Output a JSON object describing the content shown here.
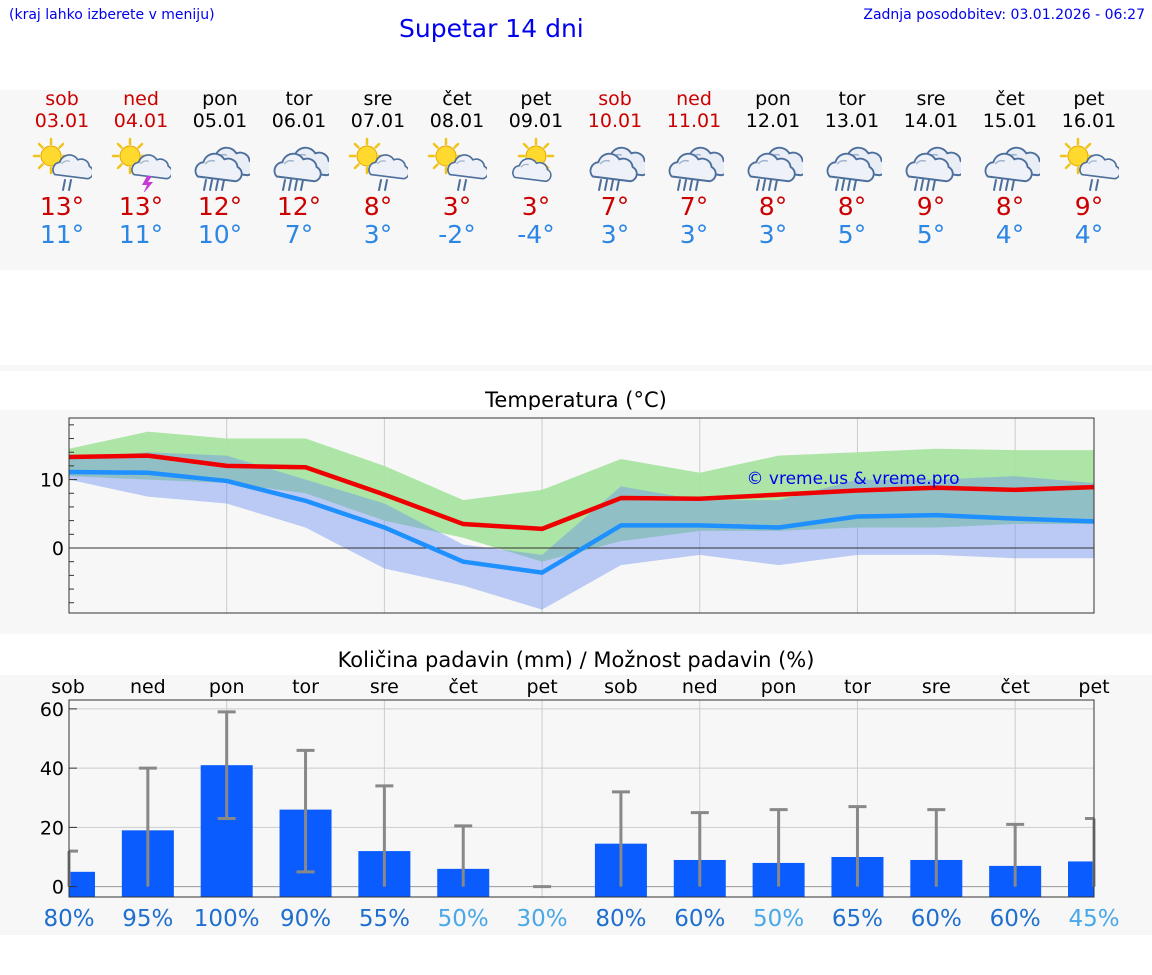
{
  "header": {
    "region_hint": "(kraj lahko izberete v meniju)",
    "title": "Supetar 14 dni",
    "last_update": "Zadnja posodobitev: 03.01.2026 - 06:27"
  },
  "days": [
    {
      "name": "sob",
      "date": "03.01",
      "weekend": true,
      "icon": "sun-cloud-rain-icon",
      "tmax": "13°",
      "tmin": "11°"
    },
    {
      "name": "ned",
      "date": "04.01",
      "weekend": true,
      "icon": "sun-cloud-storm-icon",
      "tmax": "13°",
      "tmin": "11°"
    },
    {
      "name": "pon",
      "date": "05.01",
      "weekend": false,
      "icon": "cloud-rain-icon",
      "tmax": "12°",
      "tmin": "10°"
    },
    {
      "name": "tor",
      "date": "06.01",
      "weekend": false,
      "icon": "cloud-rain-icon",
      "tmax": "12°",
      "tmin": "7°"
    },
    {
      "name": "sre",
      "date": "07.01",
      "weekend": false,
      "icon": "sun-cloud-rain-icon",
      "tmax": "8°",
      "tmin": "3°"
    },
    {
      "name": "čet",
      "date": "08.01",
      "weekend": false,
      "icon": "sun-cloud-rain-icon",
      "tmax": "3°",
      "tmin": "-2°"
    },
    {
      "name": "pet",
      "date": "09.01",
      "weekend": false,
      "icon": "sun-cloud-icon",
      "tmax": "3°",
      "tmin": "-4°"
    },
    {
      "name": "sob",
      "date": "10.01",
      "weekend": true,
      "icon": "cloud-rain-icon",
      "tmax": "7°",
      "tmin": "3°"
    },
    {
      "name": "ned",
      "date": "11.01",
      "weekend": true,
      "icon": "cloud-rain-icon",
      "tmax": "7°",
      "tmin": "3°"
    },
    {
      "name": "pon",
      "date": "12.01",
      "weekend": false,
      "icon": "cloud-rain-icon",
      "tmax": "8°",
      "tmin": "3°"
    },
    {
      "name": "tor",
      "date": "13.01",
      "weekend": false,
      "icon": "cloud-rain-icon",
      "tmax": "8°",
      "tmin": "5°"
    },
    {
      "name": "sre",
      "date": "14.01",
      "weekend": false,
      "icon": "cloud-rain-icon",
      "tmax": "9°",
      "tmin": "5°"
    },
    {
      "name": "čet",
      "date": "15.01",
      "weekend": false,
      "icon": "cloud-rain-icon",
      "tmax": "8°",
      "tmin": "4°"
    },
    {
      "name": "pet",
      "date": "16.01",
      "weekend": false,
      "icon": "sun-cloud-rain-icon",
      "tmax": "9°",
      "tmin": "4°"
    }
  ],
  "colors": {
    "weekend": "#cc0000",
    "tmax": "#cc0000",
    "tmin": "#2b86e4",
    "max_line": "#ee0000",
    "min_line": "#1e90ff",
    "max_band": "#a8e4a0",
    "min_band": "#adc4f5",
    "overlap_band": "#7cc8a8",
    "bar": "#0a5cff",
    "whisker": "#888888",
    "pct_dark": "#1f6fcf",
    "pct_light": "#4aa8e8"
  },
  "chart_data": [
    {
      "type": "line",
      "title": "Temperatura (°C)",
      "watermark": "© vreme.us & vreme.pro",
      "x": [
        0,
        1,
        2,
        3,
        4,
        5,
        6,
        7,
        8,
        9,
        10,
        11,
        12,
        13
      ],
      "xlim": [
        0,
        13
      ],
      "ylim": [
        -9.5,
        19
      ],
      "yticks": [
        0,
        10
      ],
      "series": [
        {
          "name": "max",
          "values": [
            13.3,
            13.5,
            12.0,
            11.8,
            7.8,
            3.5,
            2.8,
            7.3,
            7.2,
            7.8,
            8.4,
            8.8,
            8.5,
            8.9
          ]
        },
        {
          "name": "min",
          "values": [
            11.1,
            11.0,
            9.8,
            6.9,
            3.0,
            -2.0,
            -3.6,
            3.3,
            3.3,
            3.0,
            4.6,
            4.8,
            4.3,
            3.9
          ]
        }
      ],
      "bands": [
        {
          "name": "max_range",
          "upper": [
            14.5,
            17.0,
            16.0,
            16.0,
            12.0,
            7.0,
            8.5,
            13.0,
            11.0,
            13.5,
            14.0,
            14.5,
            14.3,
            14.3
          ],
          "lower": [
            10.5,
            10.0,
            9.5,
            8.0,
            4.0,
            1.5,
            -2.0,
            1.0,
            2.5,
            2.5,
            3.0,
            3.0,
            3.5,
            3.5
          ]
        },
        {
          "name": "min_range",
          "upper": [
            13.0,
            14.0,
            13.5,
            10.0,
            6.5,
            0.5,
            -1.0,
            9.0,
            7.0,
            7.0,
            10.0,
            10.0,
            10.5,
            9.5
          ],
          "lower": [
            10.0,
            7.5,
            6.5,
            3.0,
            -3.0,
            -5.5,
            -9.0,
            -2.5,
            -1.0,
            -2.5,
            -1.0,
            -1.0,
            -1.5,
            -1.5
          ]
        }
      ]
    },
    {
      "type": "bar",
      "title": "Količina padavin (mm) / Možnost padavin (%)",
      "categories": [
        "sob",
        "ned",
        "pon",
        "tor",
        "sre",
        "čet",
        "pet",
        "sob",
        "ned",
        "pon",
        "tor",
        "sre",
        "čet",
        "pet"
      ],
      "values": [
        5,
        19,
        41,
        26,
        12,
        6,
        0,
        14.5,
        9,
        8,
        10,
        9,
        7,
        8.5
      ],
      "whisker_low": [
        0,
        0,
        23,
        5,
        0,
        0,
        0,
        0,
        0,
        0,
        0,
        0,
        0,
        0
      ],
      "whisker_high": [
        12,
        40,
        59,
        46,
        34,
        20.5,
        0,
        32,
        25,
        26,
        27,
        26,
        21,
        23
      ],
      "probability": [
        "80%",
        "95%",
        "100%",
        "90%",
        "55%",
        "50%",
        "30%",
        "80%",
        "60%",
        "50%",
        "65%",
        "60%",
        "60%",
        "45%"
      ],
      "ylim": [
        -3.5,
        63
      ],
      "yticks": [
        0,
        20,
        40,
        60
      ]
    }
  ]
}
